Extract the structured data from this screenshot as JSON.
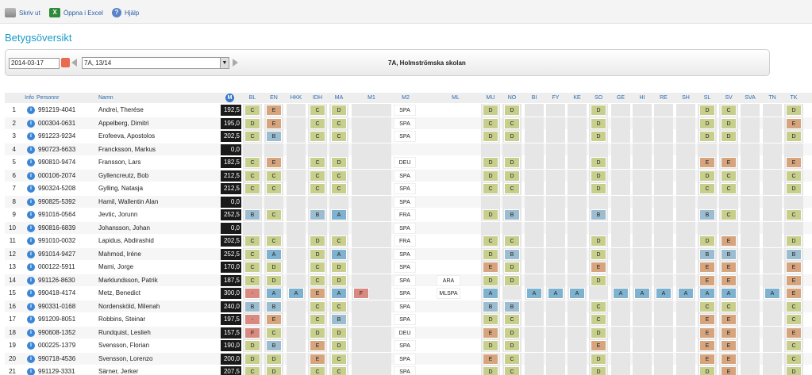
{
  "toolbar": {
    "print": "Skriv ut",
    "excel": "Öppna i Excel",
    "help": "Hjälp"
  },
  "page_title": "Betygsöversikt",
  "filter": {
    "date": "2014-03-17",
    "class": "7A, 13/14",
    "school": "7A, Holmströmska skolan"
  },
  "headers": {
    "info": "Info",
    "personnr": "Personnr",
    "name": "Namn",
    "merit": "M",
    "subjects": [
      "BL",
      "EN",
      "HKK",
      "IDH",
      "MA",
      "M1",
      "M2",
      "ML",
      "MU",
      "NO",
      "BI",
      "FY",
      "KE",
      "SO",
      "GE",
      "HI",
      "RE",
      "SH",
      "SL",
      "SV",
      "SVA",
      "TN",
      "TK"
    ]
  },
  "rows": [
    {
      "nr": "1",
      "pnr": "991219-4041",
      "name": "Andrei, Therése",
      "merit": "192,5",
      "BL": "C",
      "EN": "E",
      "IDH": "C",
      "MA": "D",
      "M2": "SPA",
      "MU": "D",
      "NO": "D",
      "SO": "D",
      "SL": "D",
      "SV": "C",
      "TK": "D"
    },
    {
      "nr": "2",
      "pnr": "000304-0631",
      "name": "Appelberg, Dimitri",
      "merit": "195,0",
      "BL": "D",
      "EN": "E",
      "IDH": "C",
      "MA": "C",
      "M2": "SPA",
      "MU": "C",
      "NO": "C",
      "SO": "D",
      "SL": "D",
      "SV": "D",
      "TK": "E"
    },
    {
      "nr": "3",
      "pnr": "991223-9234",
      "name": "Erofeeva, Apostolos",
      "merit": "202,5",
      "BL": "C",
      "EN": "B",
      "IDH": "C",
      "MA": "C",
      "M2": "SPA",
      "MU": "D",
      "NO": "D",
      "SO": "D",
      "SL": "D",
      "SV": "D",
      "TK": "D"
    },
    {
      "nr": "4",
      "pnr": "990723-6633",
      "name": "Francksson, Markus",
      "merit": "0,0"
    },
    {
      "nr": "5",
      "pnr": "990810-9474",
      "name": "Fransson, Lars",
      "merit": "182,5",
      "BL": "C",
      "EN": "E",
      "IDH": "C",
      "MA": "D",
      "M2": "DEU",
      "MU": "D",
      "NO": "D",
      "SO": "D",
      "SL": "E",
      "SV": "E",
      "TK": "E"
    },
    {
      "nr": "6",
      "pnr": "000106-2074",
      "name": "Gyllencreutz, Bob",
      "merit": "212,5",
      "BL": "C",
      "EN": "C",
      "IDH": "C",
      "MA": "C",
      "M2": "SPA",
      "MU": "D",
      "NO": "D",
      "SO": "D",
      "SL": "D",
      "SV": "C",
      "TK": "C"
    },
    {
      "nr": "7",
      "pnr": "990324-5208",
      "name": "Gylling, Natasja",
      "merit": "212,5",
      "BL": "C",
      "EN": "C",
      "IDH": "C",
      "MA": "C",
      "M2": "SPA",
      "MU": "C",
      "NO": "C",
      "SO": "D",
      "SL": "C",
      "SV": "C",
      "TK": "D"
    },
    {
      "nr": "8",
      "pnr": "990825-5392",
      "name": "Hamil, Wallentin Alan",
      "merit": "0,0",
      "M2": "SPA"
    },
    {
      "nr": "9",
      "pnr": "991016-0564",
      "name": "Jevtic, Jorunn",
      "merit": "252,5",
      "BL": "B",
      "EN": "C",
      "IDH": "B",
      "MA": "A",
      "M2": "FRA",
      "MU": "D",
      "NO": "B",
      "SO": "B",
      "SL": "B",
      "SV": "C",
      "TK": "C"
    },
    {
      "nr": "10",
      "pnr": "990816-6839",
      "name": "Johansson, Johan",
      "merit": "0,0",
      "M2": "SPA"
    },
    {
      "nr": "11",
      "pnr": "991010-0032",
      "name": "Lapidus, Abdirashid",
      "merit": "202,5",
      "BL": "C",
      "EN": "C",
      "IDH": "D",
      "MA": "C",
      "M2": "FRA",
      "MU": "C",
      "NO": "C",
      "SO": "D",
      "SL": "D",
      "SV": "E",
      "TK": "D"
    },
    {
      "nr": "12",
      "pnr": "991014-9427",
      "name": "Mahmod, Iréne",
      "merit": "252,5",
      "BL": "C",
      "EN": "A",
      "IDH": "D",
      "MA": "A",
      "M2": "SPA",
      "MU": "D",
      "NO": "B",
      "SO": "D",
      "SL": "B",
      "SV": "B",
      "TK": "B"
    },
    {
      "nr": "13",
      "pnr": "000122-5911",
      "name": "Mami, Jorge",
      "merit": "170,0",
      "BL": "C",
      "EN": "D",
      "IDH": "C",
      "MA": "D",
      "M2": "SPA",
      "MU": "E",
      "NO": "D",
      "SO": "E",
      "SL": "E",
      "SV": "E",
      "TK": "E"
    },
    {
      "nr": "14",
      "pnr": "991126-8630",
      "name": "Marklundsson, Patrik",
      "merit": "187,5",
      "BL": "C",
      "EN": "D",
      "IDH": "C",
      "MA": "D",
      "M2": "SPA",
      "ML": "ARA",
      "MU": "D",
      "NO": "D",
      "SO": "D",
      "SL": "E",
      "SV": "E",
      "TK": "E"
    },
    {
      "nr": "15",
      "pnr": "990418-4174",
      "name": "Metz, Benedict",
      "merit": "300,0",
      "BL": "-",
      "EN": "A",
      "HKK": "A",
      "IDH": "E",
      "MA": "A",
      "M2": "SPA",
      "ML": "MLSPA",
      "M1": "F",
      "MU": "A",
      "BI": "A",
      "FY": "A",
      "KE": "A",
      "GE": "A",
      "HI": "A",
      "RE": "A",
      "SH": "A",
      "SL": "A",
      "SV": "A",
      "TN": "A",
      "TK": "E"
    },
    {
      "nr": "16",
      "pnr": "990331-0168",
      "name": "Nordensköld, Milenah",
      "merit": "240,0",
      "BL": "B",
      "EN": "B",
      "IDH": "C",
      "MA": "C",
      "M2": "SPA",
      "MU": "B",
      "NO": "B",
      "SO": "C",
      "SL": "C",
      "SV": "C",
      "TK": "C"
    },
    {
      "nr": "17",
      "pnr": "991209-8051",
      "name": "Robbins, Steinar",
      "merit": "197,5",
      "BL": "-",
      "EN": "E",
      "IDH": "C",
      "MA": "B",
      "M2": "SPA",
      "MU": "D",
      "NO": "C",
      "SO": "C",
      "SL": "E",
      "SV": "E",
      "TK": "C"
    },
    {
      "nr": "18",
      "pnr": "990608-1352",
      "name": "Rundquist, Leslieh",
      "merit": "157,5",
      "BL": "F",
      "EN": "C",
      "IDH": "D",
      "MA": "D",
      "M2": "DEU",
      "MU": "E",
      "NO": "D",
      "SO": "D",
      "SL": "E",
      "SV": "E",
      "TK": "E"
    },
    {
      "nr": "19",
      "pnr": "000225-1379",
      "name": "Svensson, Florian",
      "merit": "190,0",
      "BL": "D",
      "EN": "B",
      "IDH": "E",
      "MA": "D",
      "M2": "SPA",
      "MU": "D",
      "NO": "D",
      "SO": "E",
      "SL": "E",
      "SV": "E",
      "TK": "C"
    },
    {
      "nr": "20",
      "pnr": "990718-4536",
      "name": "Svensson, Lorenzo",
      "merit": "200,0",
      "BL": "D",
      "EN": "D",
      "IDH": "E",
      "MA": "C",
      "M2": "SPA",
      "MU": "E",
      "NO": "C",
      "SO": "D",
      "SL": "E",
      "SV": "E",
      "TK": "C"
    },
    {
      "nr": "21",
      "pnr": "991129-3331",
      "name": "Särner, Jerker",
      "merit": "207,5",
      "BL": "C",
      "EN": "D",
      "IDH": "C",
      "MA": "C",
      "M2": "SPA",
      "MU": "D",
      "NO": "C",
      "SO": "D",
      "SL": "D",
      "SV": "E",
      "TK": "D"
    }
  ]
}
